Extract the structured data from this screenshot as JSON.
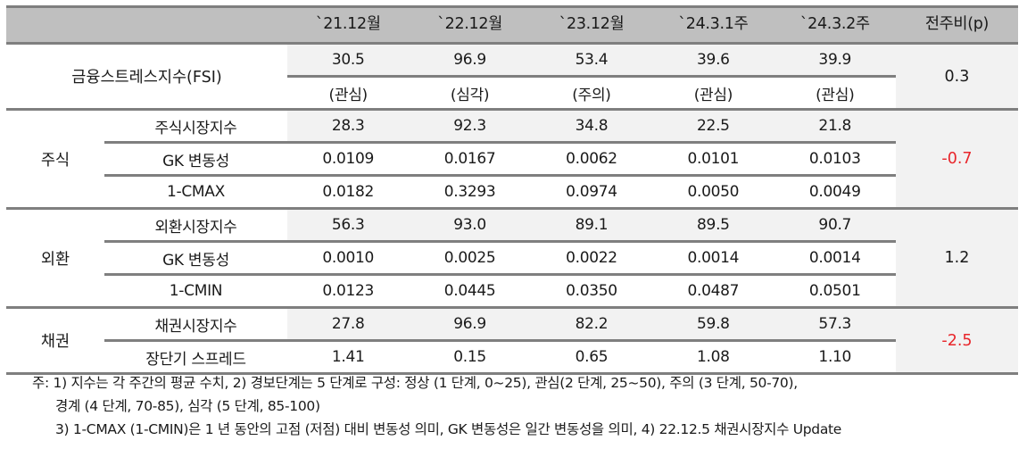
{
  "table": {
    "columns": [
      "",
      "",
      "`21.12월",
      "`22.12월",
      "`23.12월",
      "`24.3.1주",
      "`24.3.2주",
      "전주비(p)"
    ],
    "fsi": {
      "label": "금융스트레스지수(FSI)",
      "values": [
        "30.5",
        "96.9",
        "53.4",
        "39.6",
        "39.9"
      ],
      "levels": [
        "(관심)",
        "(심각)",
        "(주의)",
        "(관심)",
        "(관심)"
      ],
      "change": "0.3"
    },
    "groups": [
      {
        "category": "주식",
        "change": "-0.7",
        "change_color": "#e8262b",
        "rows": [
          {
            "label": "주식시장지수",
            "values": [
              "28.3",
              "92.3",
              "34.8",
              "22.5",
              "21.8"
            ]
          },
          {
            "label": "GK 변동성",
            "values": [
              "0.0109",
              "0.0167",
              "0.0062",
              "0.0101",
              "0.0103"
            ]
          },
          {
            "label": "1-CMAX",
            "values": [
              "0.0182",
              "0.3293",
              "0.0974",
              "0.0050",
              "0.0049"
            ]
          }
        ]
      },
      {
        "category": "외환",
        "change": "1.2",
        "change_color": "#1a1a1a",
        "rows": [
          {
            "label": "외환시장지수",
            "values": [
              "56.3",
              "93.0",
              "89.1",
              "89.5",
              "90.7"
            ]
          },
          {
            "label": "GK 변동성",
            "values": [
              "0.0010",
              "0.0025",
              "0.0022",
              "0.0014",
              "0.0014"
            ]
          },
          {
            "label": "1-CMIN",
            "values": [
              "0.0123",
              "0.0445",
              "0.0350",
              "0.0487",
              "0.0501"
            ]
          }
        ]
      },
      {
        "category": "채권",
        "change": "-2.5",
        "change_color": "#e8262b",
        "rows": [
          {
            "label": "채권시장지수",
            "values": [
              "27.8",
              "96.9",
              "82.2",
              "59.8",
              "57.3"
            ]
          },
          {
            "label": "장단기 스프레드",
            "values": [
              "1.41",
              "0.15",
              "0.65",
              "1.08",
              "1.10"
            ]
          }
        ]
      }
    ]
  },
  "notes": {
    "line1": "주: 1) 지수는 각 주간의 평균 수치, 2) 경보단계는 5 단계로 구성: 정상 (1 단계, 0~25), 관심(2 단계, 25~50), 주의 (3 단계, 50-70),",
    "line2": "경계 (4 단계, 70-85), 심각 (5 단계, 85-100)",
    "line3": "3) 1-CMAX (1-CMIN)은 1 년 동안의 고점 (저점) 대비 변동성 의미, GK 변동성은 일간 변동성을 의미, 4) 22.12.5 채권시장지수 Update"
  },
  "colors": {
    "header_bg": "#bfbfbf",
    "rule": "#7f7f7f",
    "shade": "#f2f2f2",
    "negative": "#e8262b"
  }
}
